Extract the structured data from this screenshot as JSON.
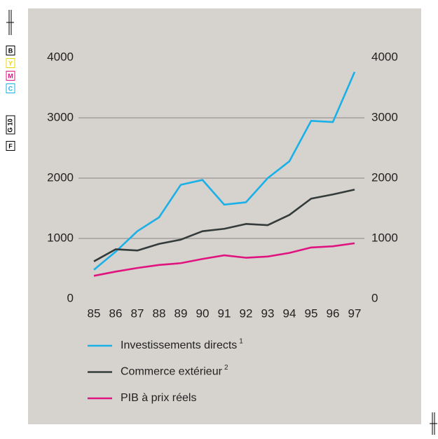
{
  "print_marks": [
    "B",
    "Y",
    "M",
    "C",
    "G 10",
    "F"
  ],
  "chart_data": {
    "type": "line",
    "categories": [
      "85",
      "86",
      "87",
      "88",
      "89",
      "90",
      "91",
      "92",
      "93",
      "94",
      "95",
      "96",
      "97"
    ],
    "series": [
      {
        "name": "Investissements directs",
        "superscript": "1",
        "color": "#1ab0e8",
        "values": [
          480,
          780,
          1120,
          1350,
          1890,
          1970,
          1560,
          1600,
          2000,
          2280,
          2950,
          2930,
          3760
        ]
      },
      {
        "name": "Commerce extérieur",
        "superscript": "2",
        "color": "#333b3b",
        "values": [
          620,
          820,
          800,
          910,
          980,
          1120,
          1160,
          1240,
          1220,
          1390,
          1660,
          1730,
          1810
        ]
      },
      {
        "name": "PIB à prix réels",
        "color": "#e0147f",
        "values": [
          380,
          450,
          510,
          560,
          590,
          660,
          720,
          680,
          700,
          760,
          850,
          870,
          920
        ]
      }
    ],
    "ylim": [
      0,
      4000
    ],
    "yticks": [
      0,
      1000,
      2000,
      3000,
      4000
    ],
    "y2lim": [
      0,
      4000
    ],
    "y2ticks": [
      0,
      1000,
      2000,
      3000,
      4000
    ],
    "grid": true
  }
}
